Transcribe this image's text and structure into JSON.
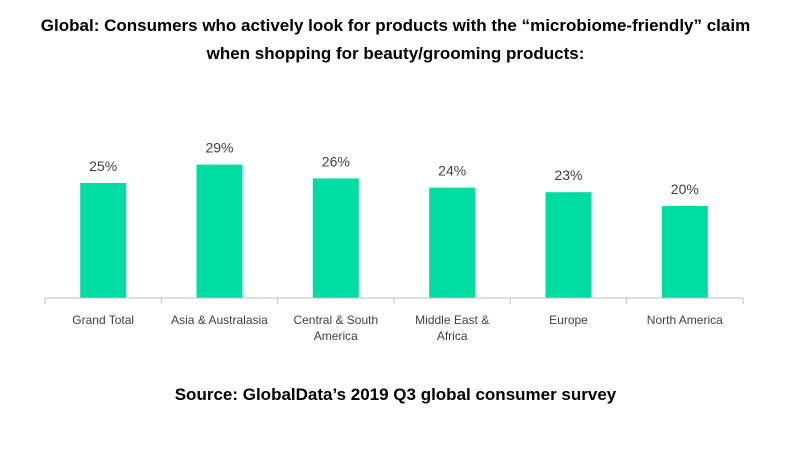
{
  "title_lines": [
    "Global: Consumers who actively look for products with the “microbiome-friendly” claim",
    "when shopping for beauty/grooming products:"
  ],
  "source": "Source: GlobalData’s 2019 Q3 global consumer survey",
  "colors": {
    "bar": "#00DDA2",
    "axis": "#BFBFBF",
    "label_text": "#404040"
  },
  "chart_data": {
    "type": "bar",
    "categories": [
      [
        "Grand Total"
      ],
      [
        "Asia & Australasia"
      ],
      [
        "Central & South",
        "America"
      ],
      [
        "Middle East &",
        "Africa"
      ],
      [
        "Europe"
      ],
      [
        "North America"
      ]
    ],
    "values": [
      25,
      29,
      26,
      24,
      23,
      20
    ],
    "value_labels": [
      "25%",
      "29%",
      "26%",
      "24%",
      "23%",
      "20%"
    ],
    "ylim": [
      0,
      35
    ],
    "grid": false,
    "legend": "none",
    "xlabel": "",
    "ylabel": ""
  }
}
